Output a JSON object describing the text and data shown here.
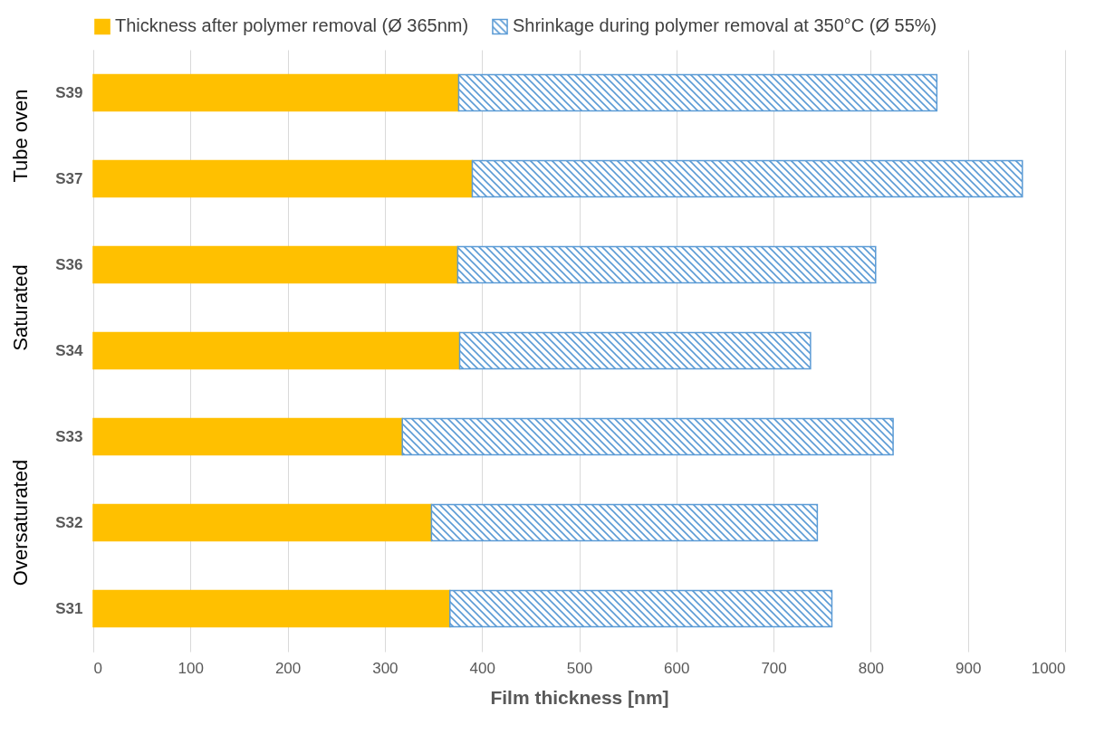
{
  "chart_data": {
    "type": "bar",
    "orientation": "horizontal",
    "stacked": true,
    "xlabel": "Film thickness [nm]",
    "categories": [
      "S39",
      "S37",
      "S36",
      "S34",
      "S33",
      "S32",
      "S31"
    ],
    "series": [
      {
        "name": "Thickness after polymer removal (Ø 365nm)",
        "color": "#ffc000",
        "values": [
          376,
          390,
          375,
          377,
          318,
          348,
          367
        ]
      },
      {
        "name": "Shrinkage during polymer removal at 350°C (Ø 55%)",
        "color": "#5b9bd5",
        "values": [
          492,
          566,
          430,
          361,
          505,
          397,
          393
        ]
      }
    ],
    "xlim": [
      0,
      1000
    ],
    "xticks": [
      0,
      100,
      200,
      300,
      400,
      500,
      600,
      700,
      800,
      900,
      1000
    ],
    "grid": "x",
    "legend": "top",
    "annotations": [
      "Tube oven",
      "Saturated",
      "Oversaturated"
    ]
  }
}
